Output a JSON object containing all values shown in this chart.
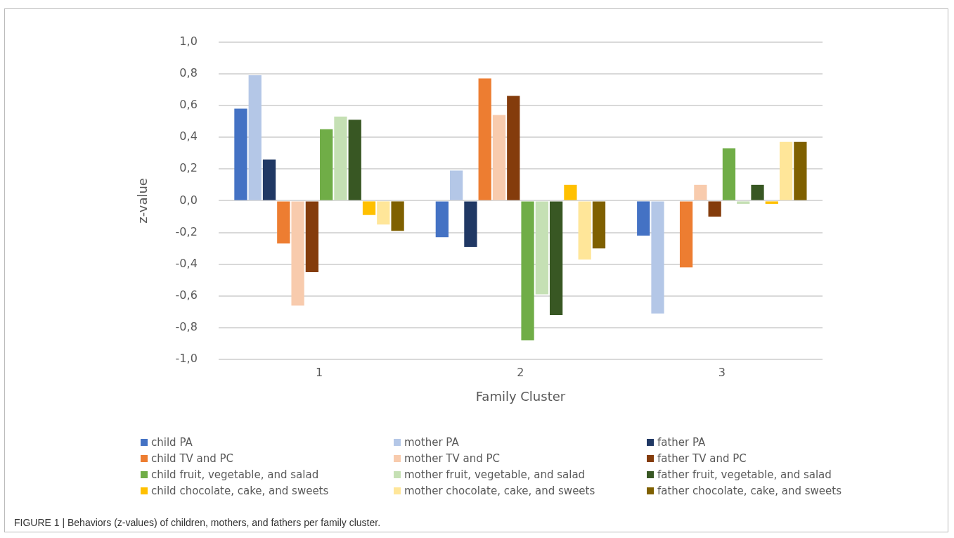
{
  "chart_data": {
    "type": "bar",
    "xlabel": "Family Cluster",
    "ylabel": "z-value",
    "categories": [
      "1",
      "2",
      "3"
    ],
    "ylim": [
      -1.0,
      1.0
    ],
    "yticks": [
      {
        "value": -1.0,
        "label": "-1,0"
      },
      {
        "value": -0.8,
        "label": "-0,8"
      },
      {
        "value": -0.6,
        "label": "-0,6"
      },
      {
        "value": -0.4,
        "label": "-0,4"
      },
      {
        "value": -0.2,
        "label": "-0,2"
      },
      {
        "value": 0,
        "label": "0,0"
      },
      {
        "value": 0.2,
        "label": "0,2"
      },
      {
        "value": 0.4,
        "label": "0,4"
      },
      {
        "value": 0.6,
        "label": "0,6"
      },
      {
        "value": 0.8,
        "label": "0,8"
      },
      {
        "value": 1.0,
        "label": "1,0"
      }
    ],
    "grid": "y",
    "legend": "bottom",
    "series": [
      {
        "name": "child PA",
        "color": "#4472c4",
        "values": [
          0.58,
          -0.23,
          -0.22
        ]
      },
      {
        "name": "mother PA",
        "color": "#b4c7e7",
        "values": [
          0.79,
          0.19,
          -0.71
        ]
      },
      {
        "name": "father PA",
        "color": "#203864",
        "values": [
          0.26,
          -0.29,
          0
        ]
      },
      {
        "name": "child TV and PC",
        "color": "#ed7d31",
        "values": [
          -0.27,
          0.77,
          -0.42
        ]
      },
      {
        "name": "mother TV and PC",
        "color": "#f8cbad",
        "values": [
          -0.66,
          0.54,
          0.1
        ]
      },
      {
        "name": "father TV and PC",
        "color": "#843c0c",
        "values": [
          -0.45,
          0.66,
          -0.1
        ]
      },
      {
        "name": "child fruit, vegetable, and salad",
        "color": "#70ad47",
        "values": [
          0.45,
          -0.88,
          0.33
        ]
      },
      {
        "name": "mother fruit, vegetable, and salad",
        "color": "#c5e0b4",
        "values": [
          0.53,
          -0.59,
          -0.02
        ]
      },
      {
        "name": "father fruit, vegetable, and salad",
        "color": "#385723",
        "values": [
          0.51,
          -0.72,
          0.1
        ]
      },
      {
        "name": "child chocolate, cake, and sweets",
        "color": "#ffc000",
        "values": [
          -0.09,
          0.1,
          -0.02
        ]
      },
      {
        "name": "mother chocolate, cake, and sweets",
        "color": "#ffe699",
        "values": [
          -0.15,
          -0.37,
          0.37
        ]
      },
      {
        "name": "father chocolate, cake, and sweets",
        "color": "#7f6000",
        "values": [
          -0.19,
          -0.3,
          0.37
        ]
      }
    ],
    "annotations": [
      "FIGURE 1 | Behaviors (z-values) of children, mothers, and fathers per family cluster."
    ]
  }
}
